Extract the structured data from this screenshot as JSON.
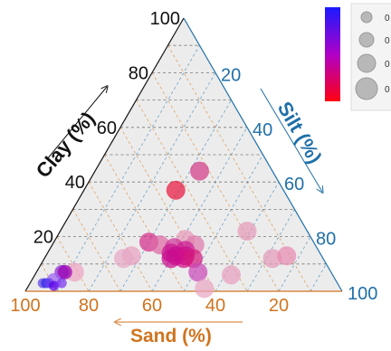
{
  "chart_data": {
    "type": "scatter",
    "subtype": "ternary",
    "axes": {
      "clay": {
        "label": "Clay (%)",
        "ticks": [
          "20",
          "40",
          "60",
          "80",
          "100"
        ],
        "color": "#111111"
      },
      "silt": {
        "label": "Silt (%)",
        "ticks": [
          "20",
          "40",
          "60",
          "80",
          "100"
        ],
        "color": "#1f6fa8"
      },
      "sand": {
        "label": "Sand (%)",
        "ticks": [
          "100",
          "80",
          "60",
          "40",
          "20"
        ],
        "color": "#d0741f"
      }
    },
    "grid": true,
    "background_color": "#ececec",
    "points": [
      {
        "sand": 23,
        "clay": 44,
        "silt": 33,
        "size": 3,
        "color": "#d23c86"
      },
      {
        "sand": 34,
        "clay": 37,
        "silt": 29,
        "size": 3,
        "color": "#e8173f"
      },
      {
        "sand": 19,
        "clay": 22,
        "silt": 59,
        "size": 3,
        "color": "#e59ab8"
      },
      {
        "sand": 40,
        "clay": 19,
        "silt": 41,
        "size": 3,
        "color": "#e89ab9"
      },
      {
        "sand": 52,
        "clay": 18,
        "silt": 30,
        "size": 3,
        "color": "#d52f8a"
      },
      {
        "sand": 49,
        "clay": 17,
        "silt": 34,
        "size": 3,
        "color": "#de6aa5"
      },
      {
        "sand": 38,
        "clay": 17,
        "silt": 45,
        "size": 3,
        "color": "#de7bac"
      },
      {
        "sand": 45,
        "clay": 16,
        "silt": 39,
        "size": 3,
        "color": "#d0359a"
      },
      {
        "sand": 42,
        "clay": 15,
        "silt": 43,
        "size": 3,
        "color": "#cc1e95"
      },
      {
        "sand": 47,
        "clay": 14,
        "silt": 39,
        "size": 3,
        "color": "#c81b92"
      },
      {
        "sand": 43,
        "clay": 13,
        "silt": 44,
        "size": 3,
        "color": "#cb0f8d"
      },
      {
        "sand": 46,
        "clay": 13,
        "silt": 41,
        "size": 3,
        "color": "#c70f90"
      },
      {
        "sand": 44,
        "clay": 12,
        "silt": 44,
        "size": 3,
        "color": "#d20f88"
      },
      {
        "sand": 48,
        "clay": 12,
        "silt": 40,
        "size": 3,
        "color": "#c90c8f"
      },
      {
        "sand": 41,
        "clay": 12,
        "silt": 47,
        "size": 3,
        "color": "#d41a7e"
      },
      {
        "sand": 60,
        "clay": 13,
        "silt": 27,
        "size": 3,
        "color": "#e8a1c0"
      },
      {
        "sand": 63,
        "clay": 12,
        "silt": 25,
        "size": 3,
        "color": "#e6a8c6"
      },
      {
        "sand": 16,
        "clay": 12,
        "silt": 72,
        "size": 3,
        "color": "#e59ab8"
      },
      {
        "sand": 11,
        "clay": 13,
        "silt": 76,
        "size": 3,
        "color": "#e88ab2"
      },
      {
        "sand": 42,
        "clay": 7,
        "silt": 51,
        "size": 3,
        "color": "#cb49b8"
      },
      {
        "sand": 32,
        "clay": 6,
        "silt": 62,
        "size": 3,
        "color": "#e8a0bf"
      },
      {
        "sand": 43,
        "clay": 1,
        "silt": 56,
        "size": 3,
        "color": "#e9a6c3"
      },
      {
        "sand": 81,
        "clay": 7,
        "silt": 12,
        "size": 3,
        "color": "#eea4c4"
      },
      {
        "sand": 85,
        "clay": 7,
        "silt": 8,
        "size": 2,
        "color": "#8a2bd6"
      },
      {
        "sand": 84,
        "clay": 7,
        "silt": 9,
        "size": 2,
        "color": "#9a00b0"
      },
      {
        "sand": 89,
        "clay": 4,
        "silt": 7,
        "size": 2,
        "color": "#9b5ff0"
      },
      {
        "sand": 93,
        "clay": 3,
        "silt": 4,
        "size": 1,
        "color": "#5f3ee8"
      },
      {
        "sand": 92,
        "clay": 3,
        "silt": 5,
        "size": 1,
        "color": "#2a2be6"
      },
      {
        "sand": 91,
        "clay": 3,
        "silt": 6,
        "size": 1,
        "color": "#6b3ff0"
      },
      {
        "sand": 90,
        "clay": 2,
        "silt": 8,
        "size": 1,
        "color": "#5b00e8"
      },
      {
        "sand": 87,
        "clay": 3,
        "silt": 10,
        "size": 1,
        "color": "#7a33f0"
      }
    ],
    "legend": {
      "colorbar": {
        "top_color": "#1a1aff",
        "bottom_color": "#ff0011"
      },
      "size_labels": [
        "0",
        "0",
        "0",
        "0"
      ]
    }
  }
}
